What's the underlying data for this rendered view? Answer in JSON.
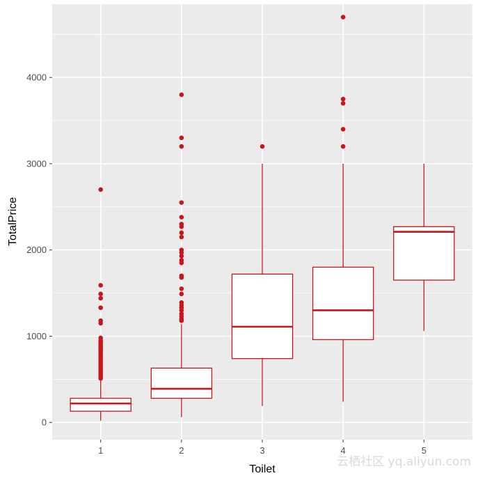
{
  "chart_data": {
    "type": "boxplot",
    "title": "",
    "xlabel": "Toilet",
    "ylabel": "TotalPrice",
    "categories": [
      "1",
      "2",
      "3",
      "4",
      "5"
    ],
    "ylim": [
      -200,
      4850
    ],
    "yticks": [
      0,
      1000,
      2000,
      3000,
      4000
    ],
    "ytick_labels": [
      "0",
      "1000",
      "2000",
      "3000",
      "4000"
    ],
    "grid": true,
    "legend": "none",
    "boxes": [
      {
        "category": "1",
        "whisker_low": 20,
        "q1": 130,
        "median": 220,
        "q3": 280,
        "whisker_high": 500,
        "outliers": [
          510,
          530,
          550,
          570,
          590,
          610,
          630,
          650,
          670,
          690,
          710,
          730,
          750,
          770,
          790,
          810,
          830,
          850,
          870,
          890,
          910,
          930,
          950,
          980,
          1150,
          1180,
          1330,
          1440,
          1490,
          1590,
          2700
        ]
      },
      {
        "category": "2",
        "whisker_low": 60,
        "q1": 280,
        "median": 390,
        "q3": 630,
        "whisker_high": 1140,
        "outliers": [
          1180,
          1200,
          1230,
          1260,
          1300,
          1330,
          1360,
          1390,
          1490,
          1550,
          1680,
          1700,
          1850,
          1880,
          1930,
          1970,
          2000,
          2150,
          2200,
          2270,
          2300,
          2380,
          2550,
          3200,
          3300,
          3800
        ]
      },
      {
        "category": "3",
        "whisker_low": 190,
        "q1": 740,
        "median": 1110,
        "q3": 1720,
        "whisker_high": 3000,
        "outliers": [
          3200
        ]
      },
      {
        "category": "4",
        "whisker_low": 240,
        "q1": 960,
        "median": 1300,
        "q3": 1800,
        "whisker_high": 3000,
        "outliers": [
          3200,
          3400,
          3700,
          3750,
          4700
        ]
      },
      {
        "category": "5",
        "whisker_low": 1060,
        "q1": 1650,
        "median": 2210,
        "q3": 2270,
        "whisker_high": 3000,
        "outliers": []
      }
    ],
    "colors": {
      "box_stroke": "#c8161d",
      "box_fill": "#ffffff",
      "outlier": "#c8161d",
      "panel_bg": "#ebebeb",
      "grid": "#ffffff"
    }
  },
  "watermark": "云栖社区 yq.aliyun.com"
}
